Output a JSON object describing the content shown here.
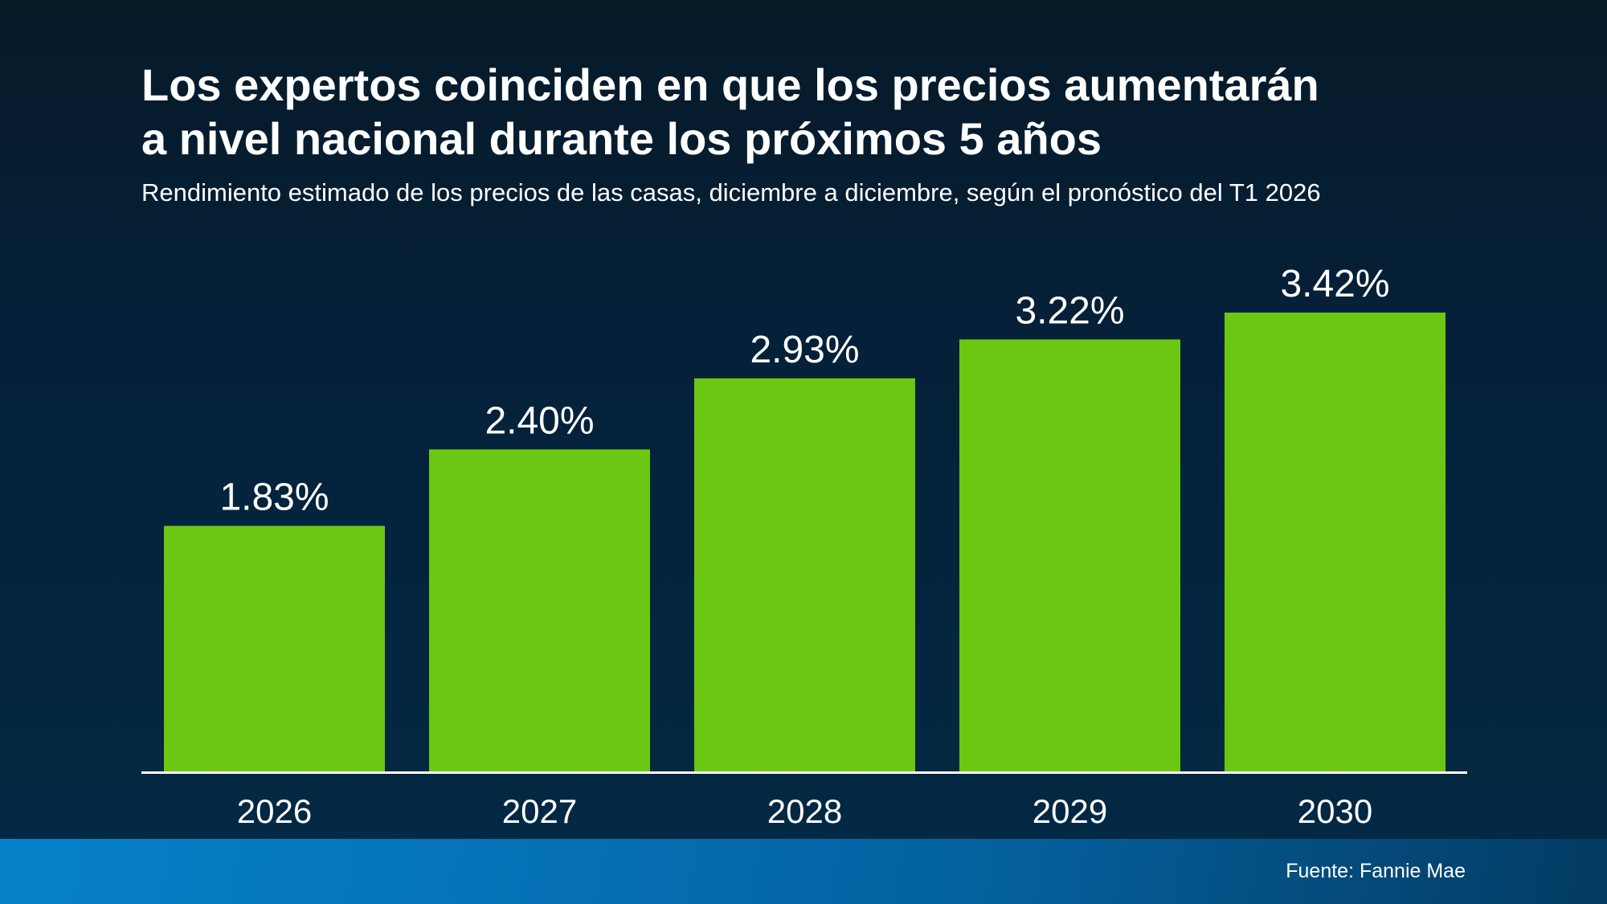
{
  "title_lines": [
    "Los expertos coinciden en que los precios aumentarán",
    "a nivel nacional durante los próximos 5 años"
  ],
  "subtitle": "Rendimiento estimado de los precios de las casas, diciembre a diciembre, según el pronóstico del T1 2026",
  "source": "Fuente: Fannie Mae",
  "colors": {
    "bar": "#6cc712",
    "axis": "#ffffff",
    "text": "#ffffff"
  },
  "chart_data": {
    "type": "bar",
    "title": "Los expertos coinciden en que los precios aumentarán a nivel nacional durante los próximos 5 años",
    "subtitle": "Rendimiento estimado de los precios de las casas, diciembre a diciembre, según el pronóstico del T1 2026",
    "xlabel": "",
    "ylabel": "",
    "categories": [
      "2026",
      "2027",
      "2028",
      "2029",
      "2030"
    ],
    "values": [
      1.83,
      2.4,
      2.93,
      3.22,
      3.42
    ],
    "value_labels": [
      "1.83%",
      "2.40%",
      "2.93%",
      "3.22%",
      "3.42%"
    ],
    "ylim": [
      0,
      3.42
    ],
    "grid": false,
    "legend": "none"
  }
}
